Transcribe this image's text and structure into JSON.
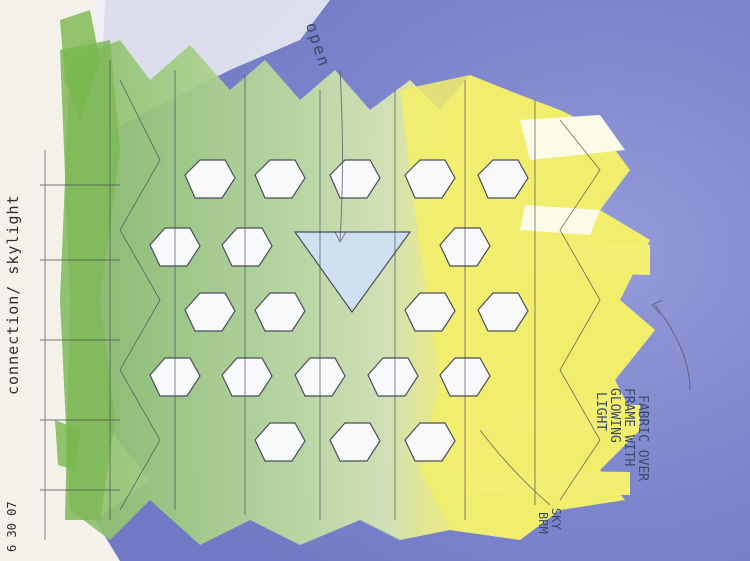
{
  "annotations": {
    "connection": "connection/ skylight",
    "date": "6 30 07",
    "open": "open",
    "fabric_line1": "FABRIC OVER",
    "fabric_line2": "FRAME WITH",
    "fabric_line3": "GLOWING",
    "fabric_line4": "LIGHT",
    "sky_line1": "SKY",
    "sky_line2": "BRM"
  },
  "colors": {
    "paper": "#f3f1ea",
    "wash_blue": "#7d86cf",
    "lattice_green": "#a9cf8c",
    "lattice_yellow": "#f0ec72",
    "pencil": "#4b4e58"
  },
  "elements": {
    "sky_wash": "blue watercolor background",
    "lattice": "hexagonal lattice frame"
  }
}
